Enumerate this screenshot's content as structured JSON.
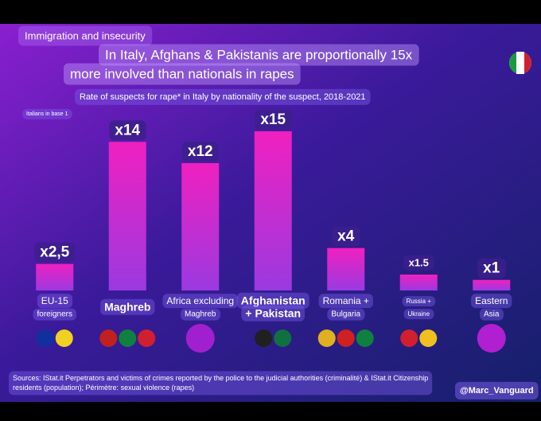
{
  "header": "Immigration and insecurity",
  "chart_data": {
    "type": "bar",
    "title": [
      "In Italy, Afghans & Pakistanis are proportionally 15x",
      "more involved than nationals in rapes"
    ],
    "subtitle": "Rate of suspects for rape* in Italy by nationality of the suspect, 2018-2021",
    "note": "Italians in base 1",
    "categories": [
      [
        "EU-15",
        "foreigners"
      ],
      [
        "Maghreb"
      ],
      [
        "Africa excluding",
        "Maghreb"
      ],
      [
        "Afghanistan",
        "+ Pakistan"
      ],
      [
        "Romania +",
        "Bulgaria"
      ],
      [
        "Russia +",
        "Ukraine"
      ],
      [
        "Eastern",
        "Asia"
      ]
    ],
    "values": [
      2.5,
      14,
      12,
      15,
      4,
      1.5,
      1
    ],
    "value_labels": [
      "x2,5",
      "x14",
      "x12",
      "x15",
      "x4",
      "x1.5",
      "x1"
    ],
    "color": "#e020c8"
  },
  "source": "Sources: IStat.it Perpetrators and victims of crimes reported by the police to the judicial authorities (criminalité) & IStat.it Citizenship residents (population); Périmètre: sexual violence (rapes)",
  "handle": "@Marc_Vanguard"
}
